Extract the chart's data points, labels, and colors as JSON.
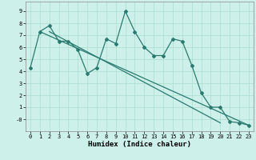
{
  "line1_x": [
    0,
    1,
    2,
    3,
    4,
    5,
    6,
    7,
    8,
    9,
    10,
    11,
    12,
    13,
    14,
    15,
    16,
    17,
    18,
    19,
    20,
    21,
    22,
    23
  ],
  "line1_y": [
    4.3,
    7.3,
    7.8,
    6.5,
    6.5,
    5.8,
    3.8,
    4.3,
    6.7,
    6.3,
    9.0,
    7.3,
    6.0,
    5.3,
    5.3,
    6.7,
    6.5,
    4.5,
    2.2,
    1.0,
    1.0,
    -0.2,
    -0.3,
    -0.5
  ],
  "line2_x": [
    1,
    23
  ],
  "line2_y": [
    7.3,
    -0.5
  ],
  "line3_x": [
    2,
    20
  ],
  "line3_y": [
    7.3,
    -0.3
  ],
  "line_color": "#2a7a70",
  "bg_color": "#cef0ea",
  "grid_color": "#aaddcc",
  "xlabel": "Humidex (Indice chaleur)",
  "xlim": [
    -0.5,
    23.5
  ],
  "ylim": [
    -1.0,
    9.8
  ],
  "yticks": [
    0,
    1,
    2,
    3,
    4,
    5,
    6,
    7,
    8,
    9
  ],
  "ytick_labels": [
    "-0",
    "1",
    "2",
    "3",
    "4",
    "5",
    "6",
    "7",
    "8",
    "9"
  ],
  "xticks": [
    0,
    1,
    2,
    3,
    4,
    5,
    6,
    7,
    8,
    9,
    10,
    11,
    12,
    13,
    14,
    15,
    16,
    17,
    18,
    19,
    20,
    21,
    22,
    23
  ],
  "marker": "D",
  "marker_size": 2.0,
  "line_width": 0.9,
  "tick_fontsize": 5.0,
  "xlabel_fontsize": 6.5
}
